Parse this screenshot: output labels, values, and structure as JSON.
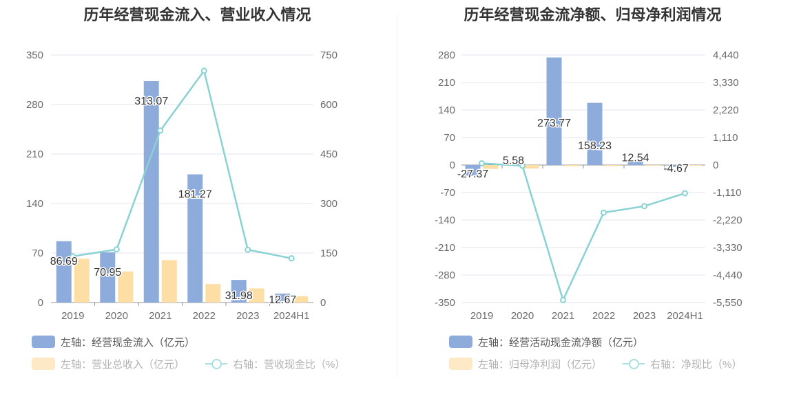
{
  "charts": [
    {
      "title": "历年经营现金流入、营业收入情况",
      "legend": [
        {
          "label": "左轴：经营现金流入（亿元）",
          "type": "bar",
          "color": "#8dabdb"
        },
        {
          "label": "左轴：营业总收入（亿元）",
          "type": "bar",
          "color": "#fddea5"
        },
        {
          "label": "右轴：营收现金比（%）",
          "type": "line",
          "color": "#89d2d4"
        }
      ]
    },
    {
      "title": "历年经营现金流净额、归母净利润情况",
      "legend": [
        {
          "label": "左轴：经营活动现金流净额（亿元）",
          "type": "bar",
          "color": "#8dabdb"
        },
        {
          "label": "左轴：归母净利润（亿元）",
          "type": "bar",
          "color": "#fddea5"
        },
        {
          "label": "右轴：净现比（%）",
          "type": "line",
          "color": "#89d2d4"
        }
      ]
    }
  ],
  "chart_data": [
    {
      "type": "bar",
      "title": "历年经营现金流入、营业收入情况",
      "categories": [
        "2019",
        "2020",
        "2021",
        "2022",
        "2023",
        "2024H1"
      ],
      "y_left": {
        "min": 0,
        "max": 350,
        "ticks": [
          "0",
          "70",
          "140",
          "210",
          "280",
          "350"
        ]
      },
      "y_right": {
        "min": 0,
        "max": 750,
        "ticks": [
          "0",
          "150",
          "300",
          "450",
          "600",
          "750"
        ]
      },
      "series": [
        {
          "name": "左轴：经营现金流入（亿元）",
          "type": "bar",
          "axis": "left",
          "color": "#8dabdb",
          "values": [
            86.69,
            70.95,
            313.07,
            181.27,
            31.98,
            12.67
          ],
          "labels": [
            "86.69",
            "70.95",
            "313.07",
            "181.27",
            "31.98",
            "12.67"
          ]
        },
        {
          "name": "左轴：营业总收入（亿元）",
          "type": "bar",
          "axis": "left",
          "color": "#fddea5",
          "values": [
            62,
            44,
            60,
            26,
            20,
            9
          ]
        },
        {
          "name": "右轴：营收现金比（%）",
          "type": "line",
          "axis": "right",
          "color": "#89d2d4",
          "values": [
            140,
            161,
            521,
            702,
            160,
            134
          ]
        }
      ],
      "grid": true,
      "legend_position": "bottom-left"
    },
    {
      "type": "bar",
      "title": "历年经营现金流净额、归母净利润情况",
      "categories": [
        "2019",
        "2020",
        "2021",
        "2022",
        "2023",
        "2024H1"
      ],
      "y_left": {
        "min": -350,
        "max": 280,
        "ticks": [
          "-350",
          "-280",
          "-210",
          "-140",
          "-70",
          "0",
          "70",
          "140",
          "210",
          "280"
        ]
      },
      "y_right": {
        "min": -5550,
        "max": 4440,
        "ticks": [
          "-5,550",
          "-4,440",
          "-3,330",
          "-2,220",
          "-1,110",
          "0",
          "1,110",
          "2,220",
          "3,330",
          "4,440"
        ]
      },
      "series": [
        {
          "name": "左轴：经营活动现金流净额（亿元）",
          "type": "bar",
          "axis": "left",
          "color": "#8dabdb",
          "values": [
            -27.37,
            5.58,
            273.77,
            158.23,
            12.54,
            -4.67
          ],
          "labels": [
            "-27.37",
            "5.58",
            "273.77",
            "158.23",
            "12.54",
            "-4.67"
          ]
        },
        {
          "name": "左轴：归母净利润（亿元）",
          "type": "bar",
          "axis": "left",
          "color": "#fddea5",
          "values": [
            -10,
            -9,
            -3,
            -3,
            -1,
            -0.5
          ]
        },
        {
          "name": "右轴：净现比（%）",
          "type": "line",
          "axis": "right",
          "color": "#89d2d4",
          "values": [
            70,
            -30,
            -5450,
            -1920,
            -1660,
            -1140
          ]
        }
      ],
      "grid": true,
      "legend_position": "bottom-left"
    }
  ]
}
